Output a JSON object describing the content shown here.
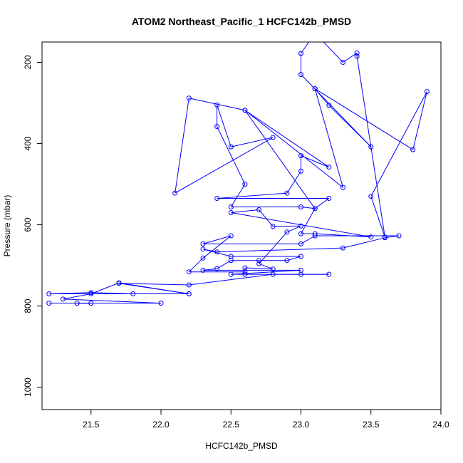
{
  "chart_data": {
    "type": "line",
    "title": "ATOM2 Northeast_Pacific_1 HCFC142b_PMSD",
    "xlabel": "HCFC142b_PMSD",
    "ylabel": "Pressure (mbar)",
    "xlim": [
      21.15,
      24.0
    ],
    "ylim": [
      1055,
      150
    ],
    "y_inverted": true,
    "x_ticks": [
      "21.5",
      "22.0",
      "22.5",
      "23.0",
      "23.5",
      "24.0"
    ],
    "y_ticks": [
      "200",
      "400",
      "600",
      "800",
      "1000"
    ],
    "grid": false,
    "legend": "none",
    "color": "#0000ff",
    "marker": "open-circle",
    "series": [
      {
        "points": [
          [
            21.2,
            793
          ],
          [
            21.5,
            793
          ],
          [
            21.4,
            793
          ],
          [
            22.0,
            793
          ],
          [
            21.3,
            783
          ],
          [
            21.5,
            770
          ],
          [
            21.7,
            743
          ],
          [
            22.2,
            770
          ],
          [
            21.2,
            770
          ],
          [
            21.5,
            767
          ],
          [
            21.8,
            770
          ],
          [
            22.2,
            770
          ],
          [
            21.7,
            744
          ],
          [
            22.2,
            748
          ],
          [
            22.8,
            722
          ],
          [
            23.0,
            722
          ],
          [
            23.2,
            722
          ],
          [
            22.6,
            722
          ],
          [
            22.5,
            722
          ],
          [
            23.0,
            712
          ],
          [
            22.3,
            712
          ],
          [
            22.4,
            708
          ],
          [
            22.5,
            688
          ],
          [
            22.7,
            688
          ],
          [
            22.9,
            688
          ],
          [
            23.0,
            678
          ],
          [
            22.5,
            678
          ],
          [
            22.3,
            660
          ],
          [
            22.4,
            667
          ],
          [
            23.3,
            657
          ],
          [
            23.6,
            632
          ],
          [
            23.7,
            627
          ],
          [
            23.1,
            627
          ],
          [
            23.0,
            647
          ],
          [
            22.3,
            647
          ],
          [
            22.5,
            627
          ],
          [
            22.3,
            682
          ],
          [
            22.2,
            716
          ],
          [
            22.6,
            716
          ],
          [
            22.6,
            706
          ],
          [
            22.8,
            709
          ],
          [
            22.7,
            696
          ],
          [
            22.9,
            618
          ],
          [
            23.0,
            603
          ],
          [
            22.8,
            604
          ],
          [
            22.7,
            563
          ],
          [
            22.5,
            570
          ],
          [
            23.5,
            630
          ],
          [
            23.1,
            622
          ],
          [
            23.0,
            622
          ],
          [
            23.1,
            560
          ],
          [
            23.0,
            556
          ],
          [
            22.5,
            556
          ],
          [
            22.6,
            500
          ],
          [
            22.4,
            358
          ],
          [
            22.4,
            305
          ],
          [
            22.5,
            408
          ],
          [
            22.8,
            385
          ],
          [
            22.1,
            522
          ],
          [
            22.2,
            288
          ],
          [
            22.6,
            318
          ],
          [
            23.1,
            560
          ],
          [
            23.2,
            535
          ],
          [
            22.4,
            535
          ],
          [
            22.9,
            522
          ],
          [
            23.0,
            468
          ],
          [
            23.0,
            430
          ],
          [
            23.2,
            458
          ],
          [
            22.6,
            318
          ],
          [
            23.3,
            508
          ],
          [
            23.1,
            265
          ],
          [
            23.2,
            306
          ],
          [
            23.5,
            408
          ],
          [
            23.0,
            230
          ],
          [
            23.0,
            178
          ],
          [
            23.1,
            128
          ],
          [
            23.3,
            200
          ],
          [
            23.4,
            177
          ],
          [
            23.4,
            185
          ],
          [
            23.6,
            630
          ],
          [
            23.5,
            530
          ],
          [
            23.9,
            272
          ],
          [
            23.8,
            415
          ],
          [
            23.1,
            265
          ]
        ]
      }
    ]
  }
}
